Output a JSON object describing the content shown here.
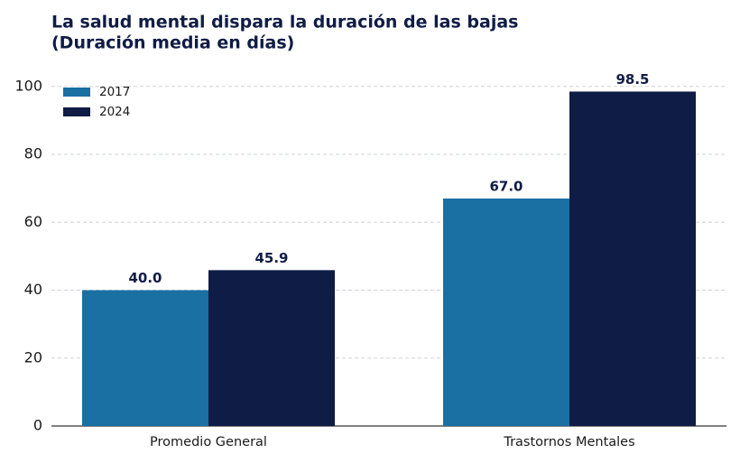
{
  "chart_data": {
    "type": "bar",
    "title": "La salud mental dispara la duración de las bajas",
    "subtitle": "(Duración media en días)",
    "categories": [
      "Promedio General",
      "Trastornos Mentales"
    ],
    "series": [
      {
        "name": "2017",
        "color": "#1a6fa3",
        "values": [
          40,
          67
        ],
        "value_labels": [
          "40.0",
          "67.0"
        ]
      },
      {
        "name": "2024",
        "color": "#0f1c45",
        "values": [
          45.9,
          98.5
        ],
        "value_labels": [
          "45.9",
          "98.5"
        ]
      }
    ],
    "ylim": [
      0,
      105
    ],
    "yticks": [
      0,
      20,
      40,
      60,
      80,
      100
    ],
    "grid": true,
    "legend": "upper left"
  }
}
